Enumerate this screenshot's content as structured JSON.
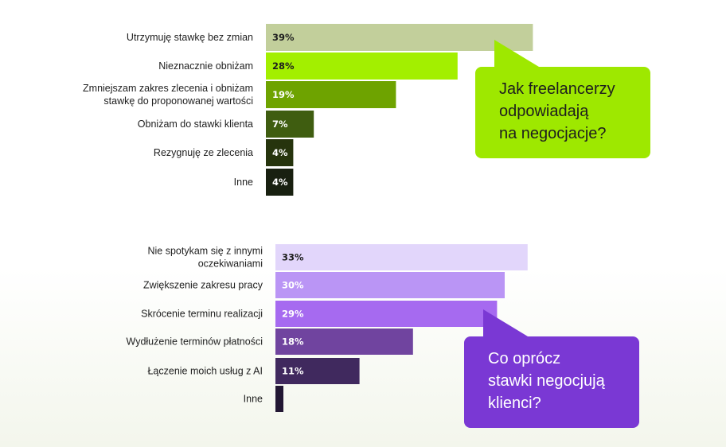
{
  "chart_data": [
    {
      "type": "bar",
      "orientation": "horizontal",
      "categories": [
        [
          "Utrzymuję stawkę bez zmian"
        ],
        [
          "Nieznacznie obniżam"
        ],
        [
          "Zmniejszam zakres zlecenia i obniżam",
          "stawkę do proponowanej wartości"
        ],
        [
          "Obniżam do stawki klienta"
        ],
        [
          "Rezygnuję ze zlecenia"
        ],
        [
          "Inne"
        ]
      ],
      "values": [
        39,
        28,
        19,
        7,
        4,
        4
      ],
      "value_labels": [
        "39%",
        "28%",
        "19%",
        "7%",
        "4%",
        "4%"
      ],
      "colors": [
        "#c2cf9b",
        "#a3ef00",
        "#6ea300",
        "#3f5d10",
        "#26340d",
        "#182010"
      ],
      "label_colors": [
        "#1e1e1e",
        "#1e1e1e",
        "#ffffff",
        "#ffffff",
        "#ffffff",
        "#ffffff"
      ],
      "xlim": [
        0,
        100
      ],
      "callout": [
        "Jak freelancerzy",
        "odpowiadają",
        "na negocjacje?"
      ]
    },
    {
      "type": "bar",
      "orientation": "horizontal",
      "categories": [
        [
          "Nie spotykam się z innymi",
          "oczekiwaniami"
        ],
        [
          "Zwiększenie zakresu pracy"
        ],
        [
          "Skrócenie terminu realizacji"
        ],
        [
          "Wydłużenie terminów płatności"
        ],
        [
          "Łączenie moich usług z AI"
        ],
        [
          "Inne"
        ]
      ],
      "values": [
        33,
        30,
        29,
        18,
        11,
        1
      ],
      "value_labels": [
        "33%",
        "30%",
        "29%",
        "18%",
        "11%",
        ""
      ],
      "colors": [
        "#e2d6fb",
        "#ba95f5",
        "#a66af0",
        "#70449f",
        "#40295e",
        "#221733"
      ],
      "label_colors": [
        "#1e1e1e",
        "#ffffff",
        "#ffffff",
        "#ffffff",
        "#ffffff",
        "#ffffff"
      ],
      "xlim": [
        0,
        100
      ],
      "callout": [
        "Co oprócz",
        "stawki negocjują",
        "klienci?"
      ]
    }
  ]
}
